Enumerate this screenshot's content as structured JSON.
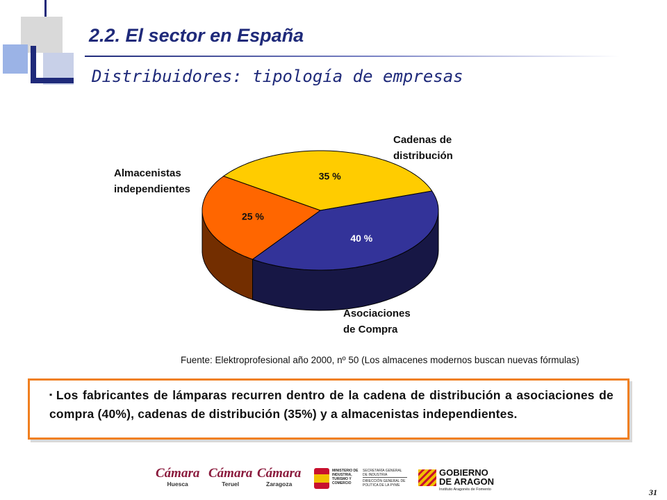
{
  "header": {
    "title": "2.2. El sector en España",
    "subtitle": "Distribuidores: tipología de empresas"
  },
  "chart_data": {
    "type": "pie",
    "title": "",
    "slices": [
      {
        "label": "Cadenas de distribución",
        "value": 35,
        "value_label": "35 %",
        "color": "#ffcc00"
      },
      {
        "label": "Asociaciones de Compra",
        "value": 40,
        "value_label": "40 %",
        "color": "#333399"
      },
      {
        "label": "Almacenistas independientes",
        "value": 25,
        "value_label": "25 %",
        "color": "#ff6600"
      }
    ],
    "style": "3d",
    "legend": "none"
  },
  "callouts": {
    "cadenas_line1": "Cadenas de",
    "cadenas_line2": "distribución",
    "asociaciones_line1": "Asociaciones",
    "asociaciones_line2": "de Compra",
    "almacenistas_line1": "Almacenistas",
    "almacenistas_line2": "independientes"
  },
  "source": "Fuente: Elektroprofesional año 2000, nº 50  (Los almacenes modernos buscan nuevas fórmulas)",
  "note": {
    "bullet": "▪",
    "text": "Los fabricantes de lámparas recurren dentro de la cadena de distribución a asociaciones de compra (40%), cadenas de distribución (35%) y a almacenistas independientes."
  },
  "footer": {
    "camara_1": {
      "name": "Cámara",
      "city": "Huesca"
    },
    "camara_2": {
      "name": "Cámara",
      "city": "Teruel"
    },
    "camara_3": {
      "name": "Cámara",
      "city": "Zaragoza"
    },
    "ministerio": "MINISTERIO DE INDUSTRIA, TURISMO Y COMERCIO",
    "secretaria": "SECRETARÍA GENERAL DE INDUSTRIA",
    "direccion": "DIRECCIÓN GENERAL DE POLÍTICA DE LA PYME",
    "gobierno_1": "GOBIERNO",
    "gobierno_2": "DE ARAGON",
    "gobierno_sub": "Instituto Aragonés de Fomento"
  },
  "page_number": "31"
}
